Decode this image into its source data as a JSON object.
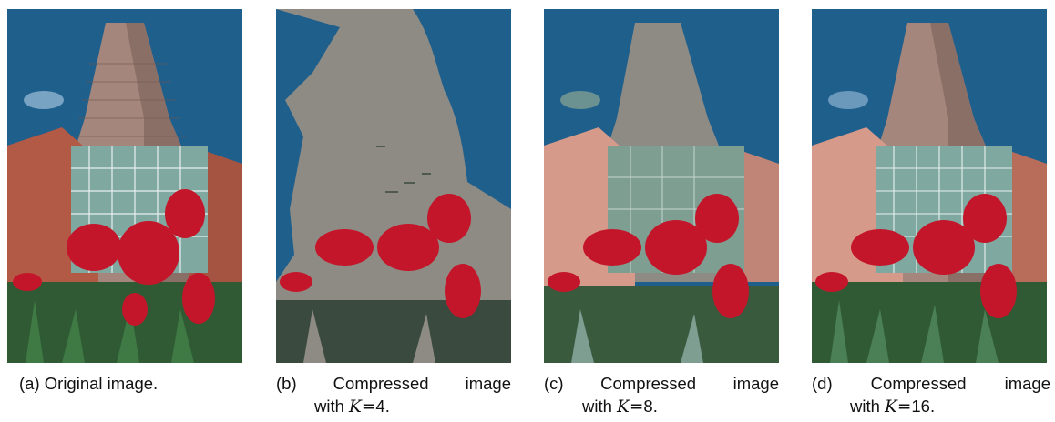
{
  "figure": {
    "panels": [
      {
        "label": "(a)",
        "caption": "Original image.",
        "variant": "original"
      },
      {
        "label": "(b)",
        "caption_words": [
          "Compressed",
          "image"
        ],
        "caption_with": "with",
        "k_symbol": "K",
        "eq": "=",
        "k_value": "4",
        "variant": "k4"
      },
      {
        "label": "(c)",
        "caption_words": [
          "Compressed",
          "image"
        ],
        "caption_with": "with",
        "k_symbol": "K",
        "eq": "=",
        "k_value": "8",
        "variant": "k8"
      },
      {
        "label": "(d)",
        "caption_words": [
          "Compressed",
          "image"
        ],
        "caption_with": "with",
        "k_symbol": "K",
        "eq": "=",
        "k_value": "16",
        "variant": "k16"
      }
    ],
    "colors": {
      "sky": "#1f5f8c",
      "sky_dark": "#1a4f78",
      "tower": "#a98a80",
      "brick": "#b35a46",
      "glass": "#7fa8a0",
      "tulip": "#c4162a",
      "stem": "#2f5a34",
      "gray_k4": "#8e8b84",
      "dark_k4": "#3a4a3e",
      "pink_k8": "#d59a8a",
      "glass_k8": "#7f9e92"
    }
  }
}
